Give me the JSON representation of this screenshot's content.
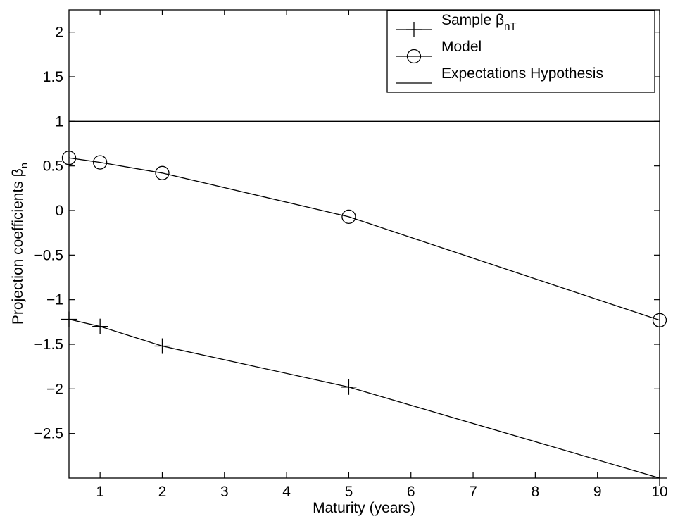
{
  "chart_data": {
    "type": "line",
    "title": "",
    "xlabel": "Maturity (years)",
    "ylabel": {
      "text": "Projection coefficients β",
      "subscript": "n"
    },
    "xlim": [
      0.5,
      10
    ],
    "ylim": [
      -3,
      2.25
    ],
    "xticks": [
      1,
      2,
      3,
      4,
      5,
      6,
      7,
      8,
      9,
      10
    ],
    "yticks": [
      -2.5,
      -2,
      -1.5,
      -1,
      -0.5,
      0,
      0.5,
      1,
      1.5,
      2
    ],
    "ytick_labels": [
      "−2.5",
      "−2",
      "−1.5",
      "−1",
      "−0.5",
      "0",
      "0.5",
      "1",
      "1.5",
      "2"
    ],
    "grid": false,
    "legend_position": "top-right",
    "series": [
      {
        "name": {
          "text": "Sample β",
          "subscript": "nT"
        },
        "marker": "plus",
        "color": "#000000",
        "x": [
          0.5,
          1,
          2,
          5,
          10
        ],
        "y": [
          -1.22,
          -1.3,
          -1.52,
          -1.98,
          -3.0
        ]
      },
      {
        "name": {
          "text": "Model",
          "subscript": ""
        },
        "marker": "circle",
        "color": "#000000",
        "x": [
          0.5,
          1,
          2,
          5,
          10
        ],
        "y": [
          0.59,
          0.54,
          0.42,
          -0.07,
          -1.23
        ]
      },
      {
        "name": {
          "text": "Expectations Hypothesis",
          "subscript": ""
        },
        "marker": "none",
        "color": "#000000",
        "x": [
          0.5,
          10
        ],
        "y": [
          1,
          1
        ]
      }
    ]
  }
}
